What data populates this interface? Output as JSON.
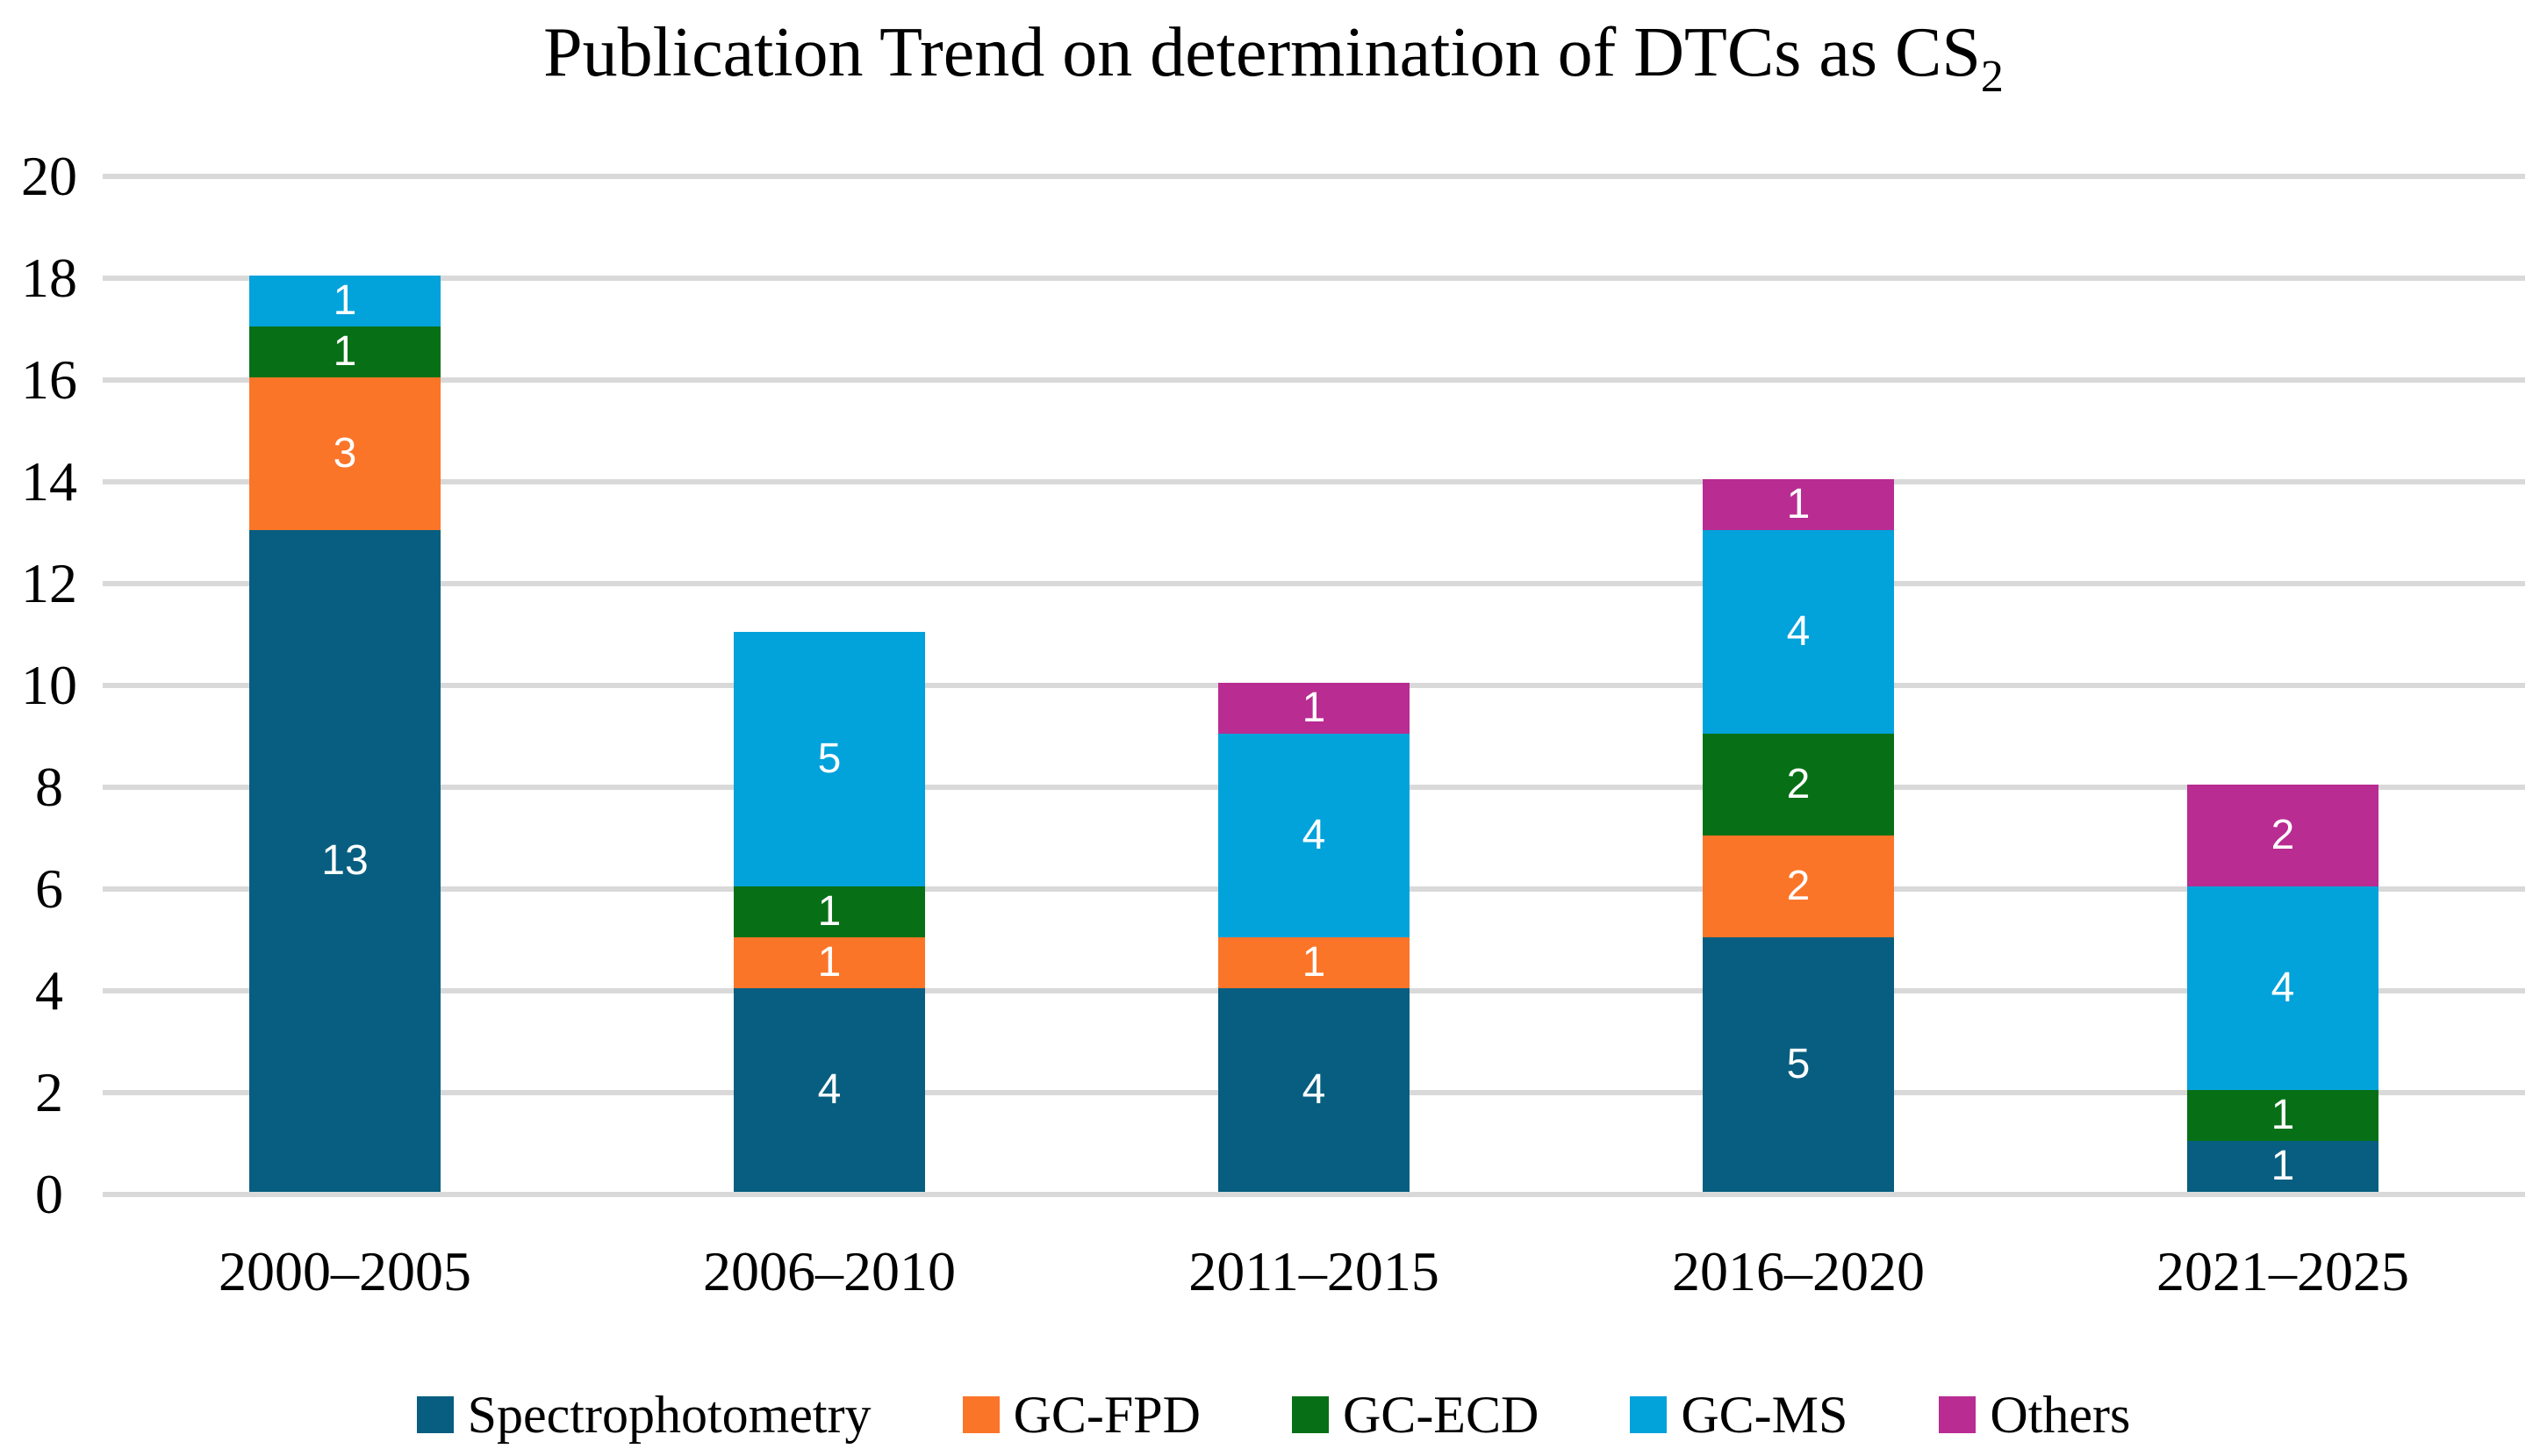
{
  "title": {
    "text": "Publication Trend on determination of DTCs as CS",
    "subscript": "2"
  },
  "chart_data": {
    "type": "bar",
    "stacked": true,
    "title": "Publication Trend on determination of DTCs as CS2",
    "categories": [
      "2000–2005",
      "2006–2010",
      "2011–2015",
      "2016–2020",
      "2021–2025"
    ],
    "series": [
      {
        "name": "Spectrophotometry",
        "color": "#075E80",
        "values": [
          13,
          4,
          4,
          5,
          1
        ]
      },
      {
        "name": "GC-FPD",
        "color": "#FB7529",
        "values": [
          3,
          1,
          1,
          2,
          0
        ]
      },
      {
        "name": "GC-ECD",
        "color": "#077016",
        "values": [
          1,
          1,
          0,
          2,
          1
        ]
      },
      {
        "name": "GC-MS",
        "color": "#02A2DB",
        "values": [
          1,
          5,
          4,
          4,
          4
        ]
      },
      {
        "name": "Others",
        "color": "#B92C92",
        "values": [
          0,
          0,
          1,
          1,
          2
        ]
      }
    ],
    "stack_totals": [
      18,
      11,
      10,
      14,
      8
    ],
    "xlabel": "",
    "ylabel": "",
    "ylim": [
      0,
      20
    ],
    "yticks": [
      0,
      2,
      4,
      6,
      8,
      10,
      12,
      14,
      16,
      18,
      20
    ],
    "grid": true,
    "gridline_color": "#D9D9D9",
    "data_labels": true,
    "data_label_color": "#FFFFFF",
    "legend_position": "bottom",
    "background": "#FFFFFF"
  }
}
